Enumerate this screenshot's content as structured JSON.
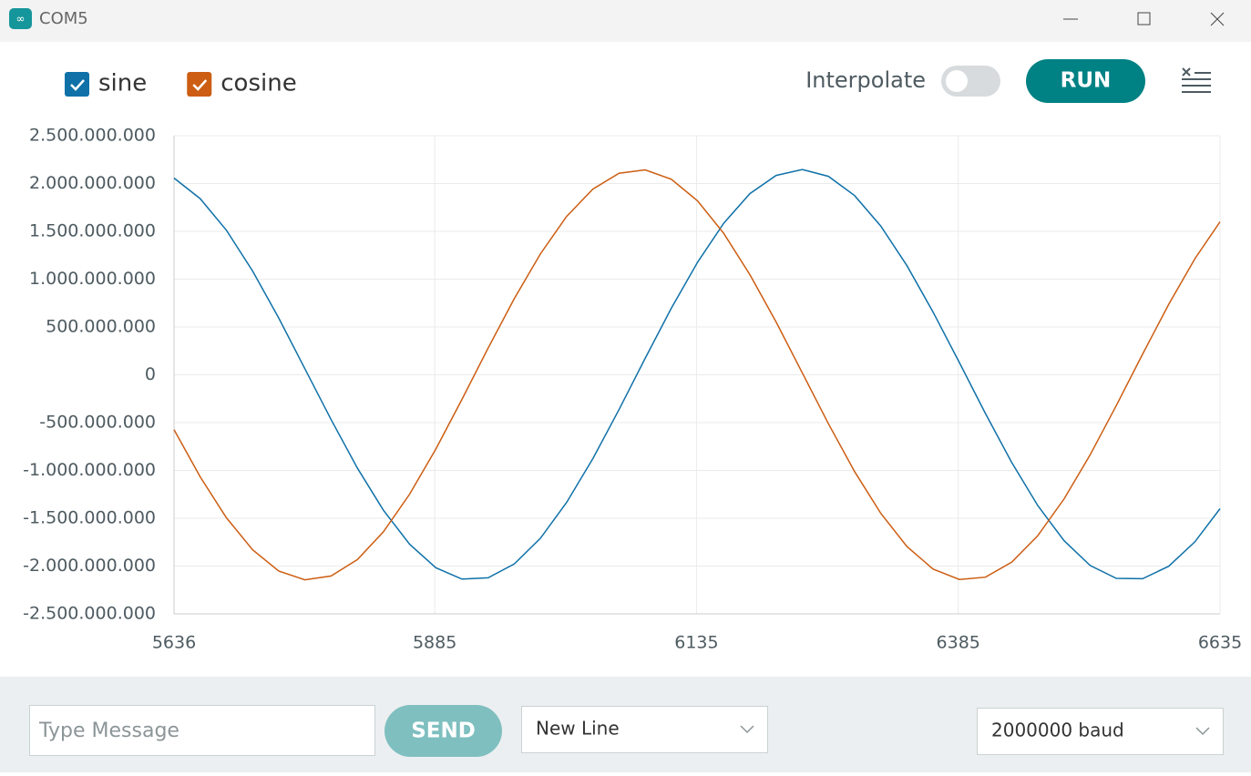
{
  "window": {
    "title": "COM5"
  },
  "toolbar": {
    "interpolate": "Interpolate",
    "run": "RUN"
  },
  "footer": {
    "message_placeholder": "Type Message",
    "send": "SEND",
    "line_ending": "New Line",
    "baud": "2000000 baud"
  },
  "chart_data": {
    "type": "line",
    "x": [
      5636,
      5661,
      5686,
      5711,
      5736,
      5761,
      5786,
      5811,
      5836,
      5861,
      5886,
      5911,
      5936,
      5961,
      5986,
      6011,
      6036,
      6061,
      6086,
      6111,
      6136,
      6161,
      6186,
      6211,
      6236,
      6261,
      6286,
      6311,
      6336,
      6361,
      6386,
      6411,
      6436,
      6461,
      6486,
      6511,
      6536,
      6561,
      6586,
      6611,
      6635
    ],
    "series": [
      {
        "name": "sine",
        "color": "#0f71a8",
        "values": [
          2057000000,
          1842000000,
          1511000000,
          1086000000,
          594000000,
          64000000,
          -469000000,
          -973000000,
          -1416000000,
          -1772000000,
          -2017000000,
          -2136000000,
          -2123000000,
          -1978000000,
          -1709000000,
          -1334000000,
          -876000000,
          -364000000,
          172000000,
          696000000,
          1177000000,
          1585000000,
          1894000000,
          2085000000,
          2147000000,
          2075000000,
          1874000000,
          1555000000,
          1141000000,
          655000000,
          129000000,
          -406000000,
          -915000000,
          -1368000000,
          -1734000000,
          -1994000000,
          -2129000000,
          -2132000000,
          -2002000000,
          -1747000000,
          -1400000000
        ]
      },
      {
        "name": "cosine",
        "color": "#cc5d12",
        "values": [
          -573000000,
          -1067000000,
          -1495000000,
          -1830000000,
          -2051000000,
          -2144000000,
          -2104000000,
          -1933000000,
          -1642000000,
          -1248000000,
          -777000000,
          -257000000,
          279000000,
          797000000,
          1266000000,
          1656000000,
          1942000000,
          2108000000,
          2143000000,
          2045000000,
          1819000000,
          1479000000,
          1048000000,
          552000000,
          21000000,
          -511000000,
          -1011000000,
          -1449000000,
          -1796000000,
          -2031000000,
          -2140000000,
          -2116000000,
          -1960000000,
          -1682000000,
          -1299000000,
          -836000000,
          -321000000,
          215000000,
          737000000,
          1213000000,
          1600000000
        ]
      }
    ],
    "xlim": [
      5636,
      6635
    ],
    "xticks": [
      5636,
      5885,
      6135,
      6385,
      6635
    ],
    "ylim": [
      -2500000000,
      2500000000
    ],
    "yticks": [
      {
        "value": -2500000000,
        "label": "-2.500.000.000"
      },
      {
        "value": -2000000000,
        "label": "-2.000.000.000"
      },
      {
        "value": -1500000000,
        "label": "-1.500.000.000"
      },
      {
        "value": -1000000000,
        "label": "-1.000.000.000"
      },
      {
        "value": -500000000,
        "label": "-500.000.000"
      },
      0,
      {
        "value": 500000000,
        "label": "500.000.000"
      },
      {
        "value": 1000000000,
        "label": "1.000.000.000"
      },
      {
        "value": 1500000000,
        "label": "1.500.000.000"
      },
      {
        "value": 2000000000,
        "label": "2.000.000.000"
      },
      {
        "value": 2500000000,
        "label": "2.500.000.000"
      }
    ],
    "grid": true
  }
}
